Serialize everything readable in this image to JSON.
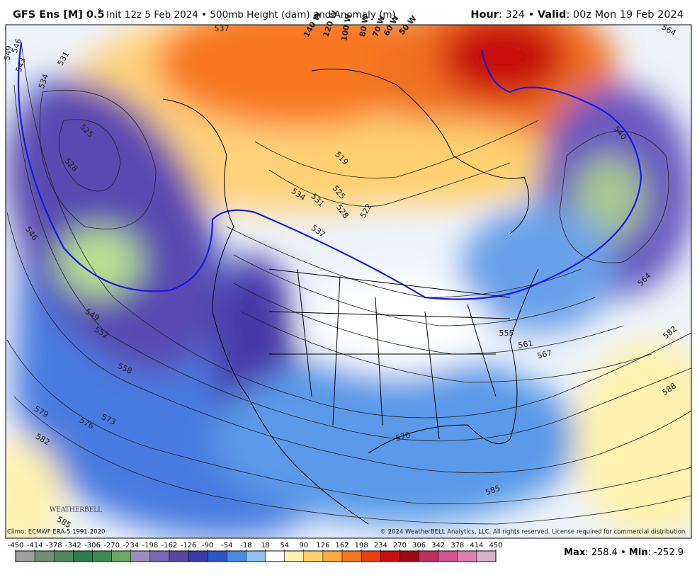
{
  "header": {
    "title": "GFS Ens [M] 0.5",
    "degree": "°",
    "subtitle": "Init 12z 5 Feb 2024 • 500mb Height (dam) and Anomaly (m)",
    "hour_label": "Hour",
    "hour_value": ": 324",
    "separator": "•",
    "valid_label": "Valid",
    "valid_value": ": 00z Mon 19 Feb 2024"
  },
  "map": {
    "longitude_labels": [
      "140 W",
      "120 W",
      "100 W",
      "80 W",
      "70 W",
      "60 W",
      "50 W"
    ],
    "contour_labels": [
      "546",
      "543",
      "531",
      "534",
      "549",
      "525",
      "528",
      "546",
      "549",
      "552",
      "558",
      "579",
      "576",
      "573",
      "582",
      "585",
      "537",
      "519",
      "534",
      "531",
      "528",
      "522",
      "537",
      "525",
      "540",
      "564",
      "564",
      "582",
      "588",
      "555",
      "561",
      "567",
      "570",
      "585"
    ],
    "logo": "WEATHERBELL"
  },
  "footer": {
    "climo": "Climo: ECMWF ERA-5 1991-2020",
    "copyright": "© 2024 WeatherBELL Analytics, LLC. All rights reserved. License required for commercial distribution.",
    "max_label": "Max",
    "max_value": ": 258.4",
    "separator": "•",
    "min_label": "Min",
    "min_value": ": -252.9"
  },
  "colorbar": {
    "ticks": [
      -450,
      -414,
      -378,
      -342,
      -306,
      -270,
      -234,
      -198,
      -162,
      -126,
      -90,
      -54,
      -18,
      18,
      54,
      90,
      126,
      162,
      198,
      234,
      270,
      306,
      342,
      378,
      414,
      450
    ],
    "colors": [
      "#9e9e9e",
      "#6f8f6f",
      "#4f8a5a",
      "#2e7a48",
      "#3e8a50",
      "#6aa86a",
      "#9c8fc0",
      "#7a68b0",
      "#5a48a0",
      "#3a3aa8",
      "#2a5ac8",
      "#4a8ae0",
      "#8ec0f0",
      "#ffffff",
      "#fff2b0",
      "#ffd070",
      "#ffa840",
      "#f87820",
      "#e84010",
      "#c81010",
      "#a00818",
      "#c03060",
      "#d05890",
      "#e080b0",
      "#d8b0c8"
    ]
  }
}
